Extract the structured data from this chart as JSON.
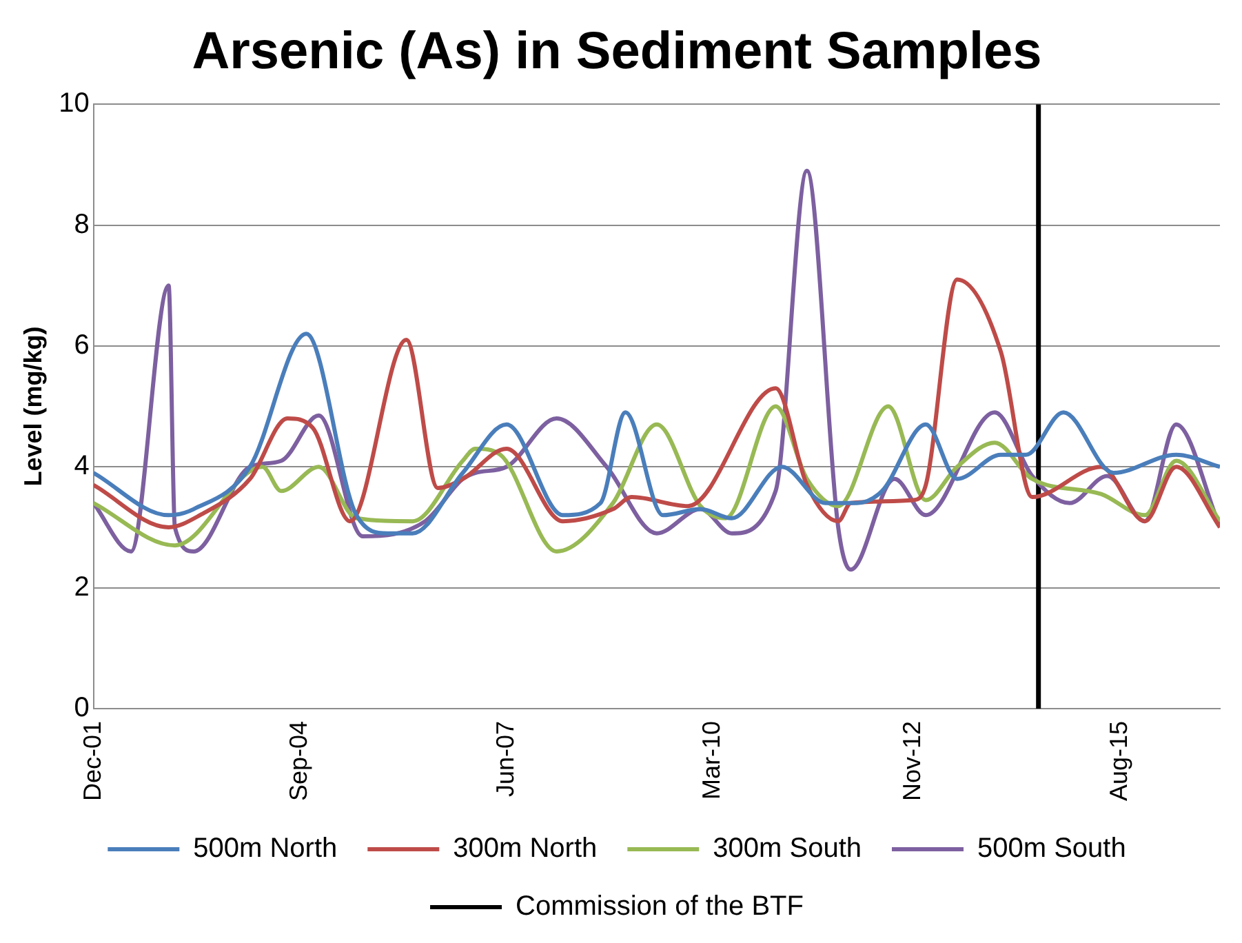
{
  "chart_data": {
    "type": "line",
    "title": "Arsenic (As) in Sediment Samples",
    "ylabel": "Level (mg/kg)",
    "xlim": [
      "2001-12",
      "2016-12"
    ],
    "xticks": [
      {
        "value": "2001-12",
        "label": "Dec-01"
      },
      {
        "value": "2004-09",
        "label": "Sep-04"
      },
      {
        "value": "2007-06",
        "label": "Jun-07"
      },
      {
        "value": "2010-03",
        "label": "Mar-10"
      },
      {
        "value": "2012-11",
        "label": "Nov-12"
      },
      {
        "value": "2015-08",
        "label": "Aug-15"
      }
    ],
    "ylim": [
      0,
      10
    ],
    "yticks": [
      0,
      2,
      4,
      6,
      8,
      10
    ],
    "grid": "y",
    "legend": "bottom",
    "marker": "none",
    "line_style": "solid",
    "series": [
      {
        "name": "500m North",
        "color": "#4a7ebb",
        "x": [
          "2001-12",
          "2002-12",
          "2003-04",
          "2004-01",
          "2004-10",
          "2005-06",
          "2005-11",
          "2006-03",
          "2006-11",
          "2007-06",
          "2008-03",
          "2008-09",
          "2009-01",
          "2009-07",
          "2010-01",
          "2010-06",
          "2011-02",
          "2011-09",
          "2012-02",
          "2012-06",
          "2013-01",
          "2013-06",
          "2014-01",
          "2014-05",
          "2014-11",
          "2015-07",
          "2016-05",
          "2016-12"
        ],
        "values": [
          3.9,
          3.2,
          3.3,
          4.0,
          6.2,
          3.2,
          2.9,
          2.9,
          3.9,
          4.7,
          3.2,
          3.4,
          4.9,
          3.2,
          3.3,
          3.15,
          4.0,
          3.4,
          3.4,
          3.6,
          4.7,
          3.8,
          4.2,
          4.2,
          4.9,
          3.9,
          4.2,
          4.0
        ]
      },
      {
        "name": "300m North",
        "color": "#be4b48",
        "x": [
          "2001-12",
          "2002-12",
          "2003-05",
          "2004-01",
          "2004-07",
          "2004-11",
          "2005-05",
          "2006-02",
          "2006-07",
          "2006-11",
          "2007-06",
          "2008-03",
          "2008-11",
          "2009-02",
          "2009-11",
          "2011-01",
          "2011-06",
          "2011-11",
          "2012-01",
          "2012-11",
          "2013-01",
          "2013-06",
          "2014-01",
          "2014-06",
          "2015-05",
          "2015-12",
          "2016-05",
          "2016-12"
        ],
        "values": [
          3.7,
          3.0,
          3.2,
          3.8,
          4.8,
          4.65,
          3.1,
          6.1,
          3.65,
          3.8,
          4.3,
          3.1,
          3.3,
          3.5,
          3.35,
          5.3,
          3.7,
          3.1,
          3.4,
          3.45,
          3.7,
          7.1,
          5.9,
          3.5,
          4.0,
          3.1,
          4.0,
          3.0
        ]
      },
      {
        "name": "300m South",
        "color": "#98b954",
        "x": [
          "2001-12",
          "2003-01",
          "2004-03",
          "2004-06",
          "2004-12",
          "2005-06",
          "2006-03",
          "2006-11",
          "2007-01",
          "2007-05",
          "2008-02",
          "2008-11",
          "2009-06",
          "2010-01",
          "2010-05",
          "2011-01",
          "2011-06",
          "2011-11",
          "2012-07",
          "2013-01",
          "2013-06",
          "2013-12",
          "2014-06",
          "2015-05",
          "2015-12",
          "2016-05",
          "2016-12"
        ],
        "values": [
          3.4,
          2.7,
          4.0,
          3.6,
          4.0,
          3.15,
          3.1,
          4.1,
          4.3,
          4.2,
          2.6,
          3.4,
          4.7,
          3.35,
          3.15,
          5.0,
          3.8,
          3.35,
          5.0,
          3.45,
          4.0,
          4.4,
          3.8,
          3.55,
          3.2,
          4.1,
          3.1
        ]
      },
      {
        "name": "500m South",
        "color": "#7d60a0",
        "x": [
          "2001-12",
          "2002-06",
          "2002-12",
          "2003-01",
          "2003-04",
          "2004-01",
          "2004-06",
          "2004-12",
          "2005-07",
          "2006-05",
          "2006-11",
          "2007-01",
          "2007-06",
          "2008-02",
          "2008-10",
          "2009-06",
          "2010-01",
          "2010-06",
          "2011-01",
          "2011-06",
          "2011-11",
          "2012-01",
          "2012-08",
          "2013-01",
          "2013-12",
          "2014-06",
          "2014-12",
          "2015-06",
          "2015-12",
          "2016-05",
          "2016-12"
        ],
        "values": [
          3.4,
          2.6,
          7.0,
          3.0,
          2.6,
          4.0,
          4.1,
          4.85,
          2.85,
          3.1,
          3.8,
          3.9,
          4.0,
          4.8,
          4.0,
          2.9,
          3.3,
          2.9,
          3.6,
          8.9,
          3.0,
          2.3,
          3.8,
          3.2,
          4.9,
          3.85,
          3.4,
          3.85,
          3.1,
          4.7,
          3.0
        ]
      }
    ],
    "ref_lines": [
      {
        "axis": "x",
        "value": "2014-07",
        "label": "Commission of the BTF",
        "color": "#000000",
        "line_style": "solid"
      }
    ]
  }
}
